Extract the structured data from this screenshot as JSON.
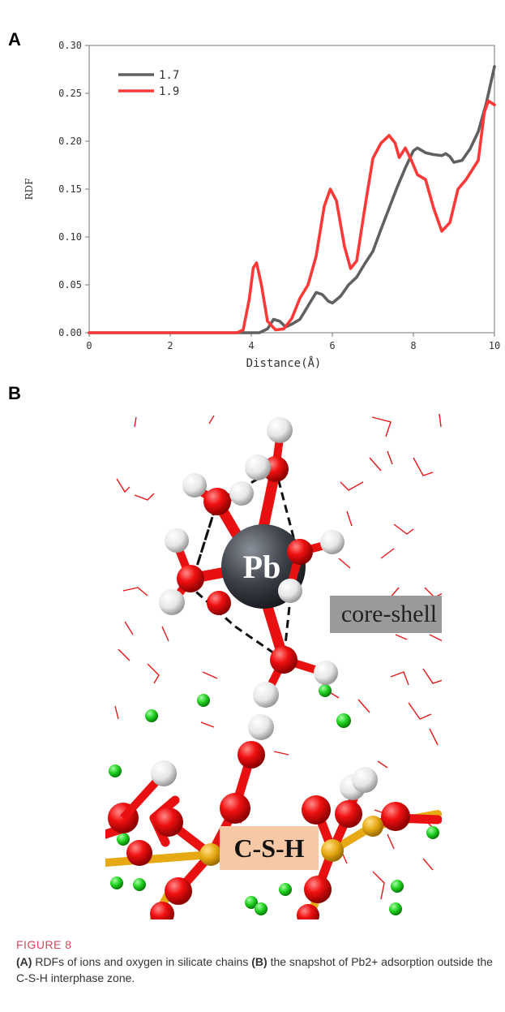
{
  "panel_a": {
    "letter": "A"
  },
  "panel_b": {
    "letter": "B",
    "labels": {
      "pb": "Pb",
      "core_shell": "core-shell",
      "csh": "C-S-H"
    }
  },
  "chart_data": {
    "type": "line",
    "xlabel": "Distance(Å)",
    "ylabel": "RDF",
    "xlim": [
      0,
      10
    ],
    "ylim": [
      0,
      0.3
    ],
    "x_ticks": [
      0,
      2,
      4,
      6,
      8,
      10
    ],
    "x_tick_labels": [
      "0",
      "2",
      "4",
      "6",
      "8",
      "10"
    ],
    "y_ticks": [
      0,
      0.05,
      0.1,
      0.15,
      0.2,
      0.25,
      0.3
    ],
    "y_tick_labels": [
      "0.00",
      "0.05",
      "0.10",
      "0.15",
      "0.20",
      "0.25",
      "0.30"
    ],
    "legend_position": "top-left",
    "grid": false,
    "series": [
      {
        "name": "1.7",
        "color": "#606060",
        "points": [
          [
            0,
            0
          ],
          [
            4.2,
            0
          ],
          [
            4.4,
            0.004
          ],
          [
            4.55,
            0.014
          ],
          [
            4.7,
            0.012
          ],
          [
            4.85,
            0.006
          ],
          [
            5.0,
            0.009
          ],
          [
            5.2,
            0.014
          ],
          [
            5.4,
            0.028
          ],
          [
            5.6,
            0.042
          ],
          [
            5.75,
            0.04
          ],
          [
            5.9,
            0.033
          ],
          [
            6.0,
            0.031
          ],
          [
            6.2,
            0.038
          ],
          [
            6.4,
            0.05
          ],
          [
            6.6,
            0.058
          ],
          [
            6.8,
            0.072
          ],
          [
            7.0,
            0.085
          ],
          [
            7.2,
            0.108
          ],
          [
            7.4,
            0.13
          ],
          [
            7.6,
            0.152
          ],
          [
            7.8,
            0.172
          ],
          [
            8.0,
            0.19
          ],
          [
            8.1,
            0.193
          ],
          [
            8.3,
            0.188
          ],
          [
            8.5,
            0.186
          ],
          [
            8.7,
            0.185
          ],
          [
            8.8,
            0.187
          ],
          [
            8.9,
            0.184
          ],
          [
            9.0,
            0.178
          ],
          [
            9.2,
            0.18
          ],
          [
            9.4,
            0.192
          ],
          [
            9.6,
            0.21
          ],
          [
            9.8,
            0.24
          ],
          [
            10.0,
            0.278
          ]
        ]
      },
      {
        "name": "1.9",
        "color": "#ff3838",
        "points": [
          [
            0,
            0
          ],
          [
            3.65,
            0
          ],
          [
            3.8,
            0.003
          ],
          [
            3.95,
            0.035
          ],
          [
            4.05,
            0.068
          ],
          [
            4.13,
            0.073
          ],
          [
            4.25,
            0.05
          ],
          [
            4.4,
            0.012
          ],
          [
            4.6,
            0.003
          ],
          [
            4.8,
            0.004
          ],
          [
            5.0,
            0.015
          ],
          [
            5.2,
            0.036
          ],
          [
            5.4,
            0.05
          ],
          [
            5.6,
            0.08
          ],
          [
            5.8,
            0.132
          ],
          [
            5.95,
            0.15
          ],
          [
            6.1,
            0.138
          ],
          [
            6.3,
            0.09
          ],
          [
            6.45,
            0.067
          ],
          [
            6.6,
            0.075
          ],
          [
            6.8,
            0.13
          ],
          [
            7.0,
            0.182
          ],
          [
            7.2,
            0.198
          ],
          [
            7.4,
            0.206
          ],
          [
            7.55,
            0.198
          ],
          [
            7.65,
            0.183
          ],
          [
            7.8,
            0.193
          ],
          [
            7.95,
            0.18
          ],
          [
            8.1,
            0.165
          ],
          [
            8.3,
            0.16
          ],
          [
            8.5,
            0.13
          ],
          [
            8.7,
            0.106
          ],
          [
            8.9,
            0.115
          ],
          [
            9.1,
            0.15
          ],
          [
            9.3,
            0.16
          ],
          [
            9.45,
            0.17
          ],
          [
            9.6,
            0.18
          ],
          [
            9.75,
            0.23
          ],
          [
            9.85,
            0.242
          ],
          [
            10.0,
            0.238
          ]
        ]
      }
    ]
  },
  "caption": {
    "figure_label": "FIGURE 8",
    "part_a_marker": "(A)",
    "part_a_text": " RDFs of ions and oxygen in silicate chains ",
    "part_b_marker": "(B)",
    "part_b_text": " the snapshot of Pb2+ adsorption outside the C-S-H interphase zone."
  }
}
